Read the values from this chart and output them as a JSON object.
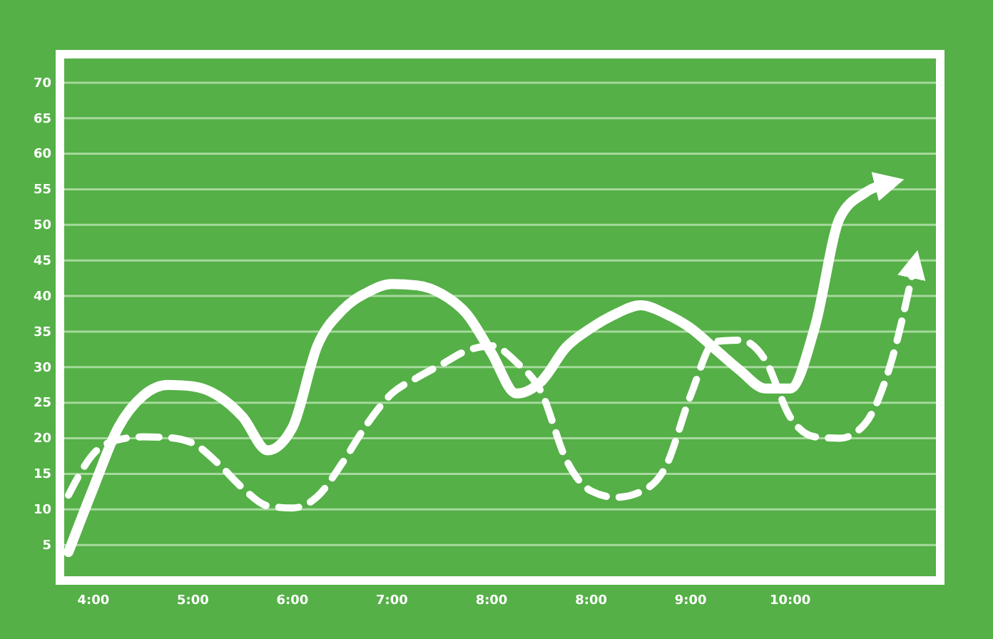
{
  "chart_data": {
    "type": "line",
    "ylim": [
      0,
      74
    ],
    "categories": [
      null,
      "4:00",
      null,
      null,
      null,
      "5:00",
      null,
      null,
      null,
      "6:00",
      null,
      null,
      null,
      "7:00",
      null,
      null,
      null,
      "8:00",
      null,
      null,
      null,
      "8:00",
      null,
      null,
      null,
      "9:00",
      null,
      null,
      null,
      "10:00",
      null,
      null,
      null,
      null,
      null
    ],
    "yticks": [
      5,
      10,
      15,
      20,
      25,
      30,
      35,
      40,
      45,
      50,
      55,
      60,
      65,
      70
    ],
    "grid": "y",
    "series": [
      {
        "color": "#ffffff",
        "line_style": "solid",
        "values": [
          4,
          13,
          21.5,
          26,
          27.5,
          27.3,
          26,
          23,
          18.3,
          21.5,
          33,
          38,
          40.5,
          41.7,
          41.5,
          40.3,
          37.5,
          32,
          26.3,
          28,
          32.8,
          35.5,
          37.5,
          38.7,
          37.5,
          35.5,
          32.5,
          29.5,
          27,
          27,
          35.7,
          51,
          54.5,
          55.9,
          null
        ]
      },
      {
        "color": "#ffffff",
        "line_style": "dashed",
        "values": [
          12,
          17.8,
          19.8,
          20.2,
          20.1,
          19.3,
          16.5,
          13,
          10.5,
          10.2,
          11.8,
          16.5,
          22,
          26.3,
          28.5,
          30.4,
          32.3,
          33,
          30.7,
          26.5,
          17,
          12.6,
          11.7,
          12.5,
          16,
          26,
          33.6,
          33.8,
          31,
          23,
          20.2,
          20,
          22,
          30,
          44.5
        ]
      }
    ]
  }
}
